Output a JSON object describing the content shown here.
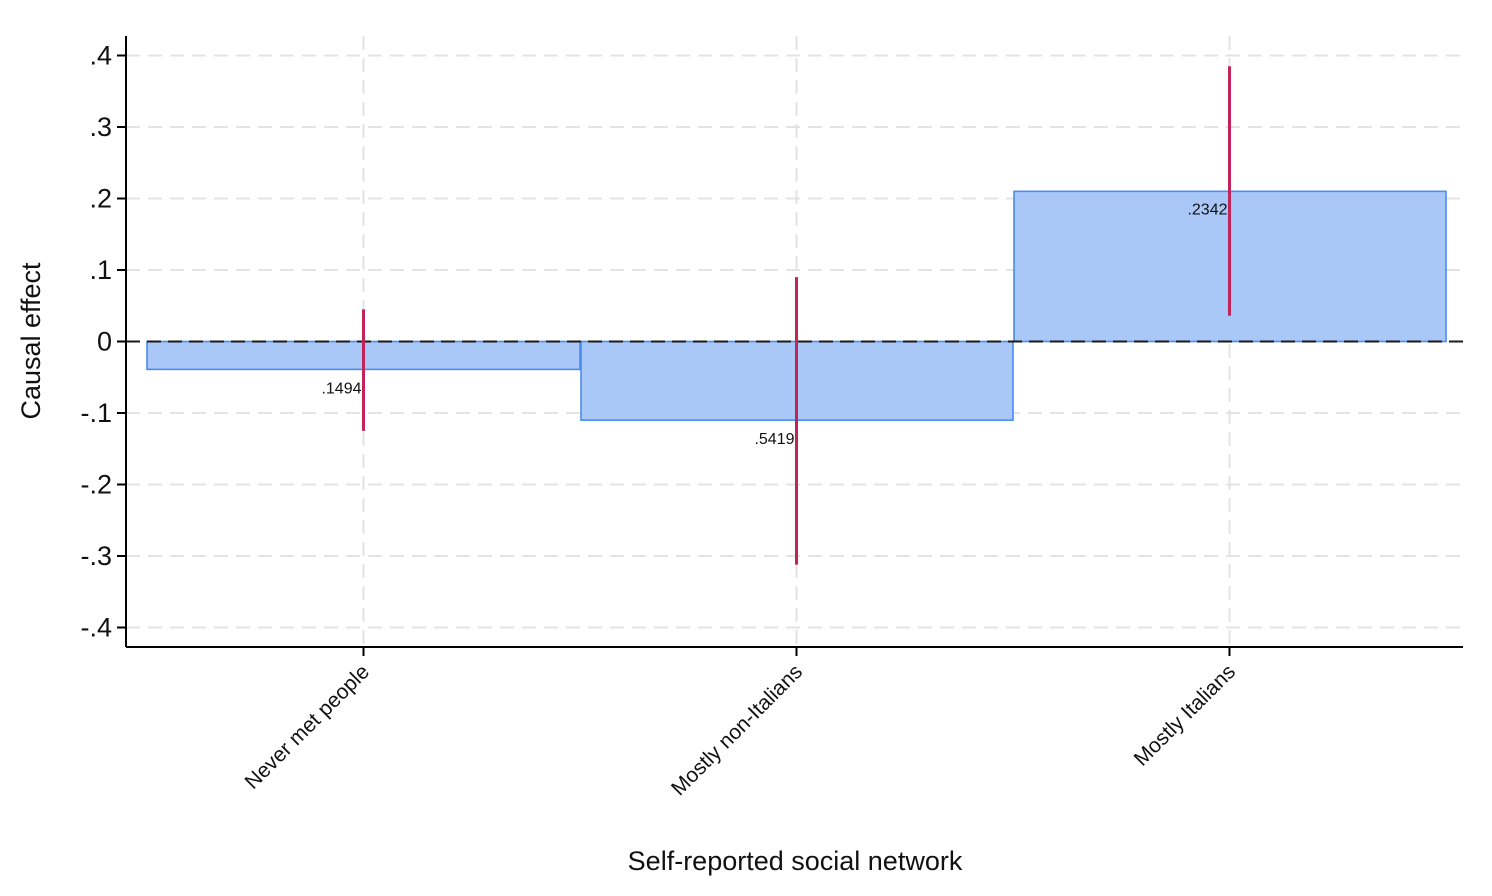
{
  "chart_data": {
    "type": "bar",
    "title": "",
    "xlabel": "Self-reported social network",
    "ylabel": "Causal effect",
    "categories": [
      "Never met people",
      "Mostly non-Italians",
      "Mostly Italians"
    ],
    "values": [
      -0.039,
      -0.11,
      0.21
    ],
    "ci_lower": [
      -0.125,
      -0.312,
      0.036
    ],
    "ci_upper": [
      0.045,
      0.09,
      0.385
    ],
    "data_labels": [
      ".1494",
      ".5419",
      ".2342"
    ],
    "ylim": [
      -0.427,
      0.427
    ],
    "yticks": [
      0.4,
      0.3,
      0.2,
      0.1,
      0,
      -0.1,
      -0.2,
      -0.3,
      -0.4
    ],
    "ytick_labels": [
      ".4",
      ".3",
      ".2",
      ".1",
      "0",
      "-.1",
      "-.2",
      "-.3",
      "-.4"
    ],
    "reference_line": 0,
    "grid": true,
    "legend": "none",
    "colors": {
      "bar_fill": "#a9c8f7",
      "bar_edge": "#4a8cf0",
      "error_bar": "#c0245a",
      "grid": "#e3e3e3",
      "axis": "#000000"
    }
  }
}
